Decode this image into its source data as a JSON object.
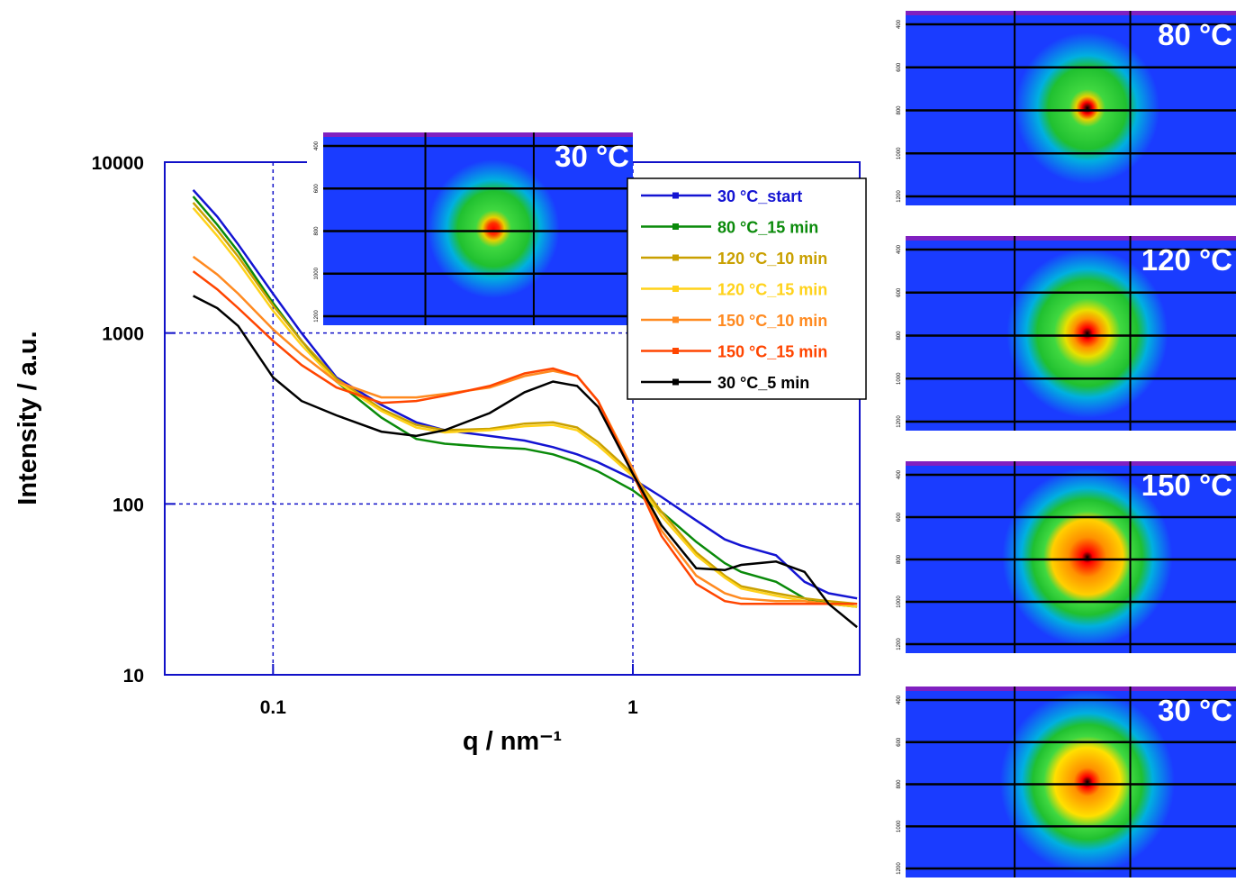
{
  "chart_data": {
    "type": "line",
    "xlabel": "q / nm⁻¹",
    "ylabel": "Intensity / a.u.",
    "xscale": "log",
    "yscale": "log",
    "grid": true,
    "legend": "upper right",
    "xlim": [
      0.05,
      4.27
    ],
    "ylim": [
      10,
      10000
    ],
    "xticks": [
      0.1,
      1
    ],
    "yticks": [
      10,
      100,
      1000,
      10000
    ],
    "x": [
      0.06,
      0.07,
      0.08,
      0.1,
      0.12,
      0.15,
      0.2,
      0.25,
      0.3,
      0.4,
      0.5,
      0.6,
      0.7,
      0.8,
      1.0,
      1.2,
      1.5,
      1.8,
      2.0,
      2.5,
      3.0,
      3.5,
      4.2
    ],
    "series": [
      {
        "name": "30 °C_start",
        "color": "#1414d2",
        "values": [
          6870,
          4800,
          3300,
          1700,
          1000,
          550,
          380,
          300,
          270,
          250,
          235,
          215,
          195,
          175,
          140,
          110,
          80,
          62,
          57,
          50,
          35,
          30,
          28
        ]
      },
      {
        "name": "80 °C_15 min",
        "color": "#0a8a0a",
        "values": [
          6300,
          4300,
          3000,
          1500,
          900,
          520,
          320,
          240,
          225,
          215,
          210,
          195,
          175,
          155,
          120,
          90,
          60,
          45,
          40,
          35,
          28,
          26,
          25
        ]
      },
      {
        "name": "120 °C_10 min",
        "color": "#c9a000",
        "values": [
          5800,
          4000,
          2800,
          1450,
          900,
          540,
          360,
          290,
          270,
          275,
          295,
          300,
          280,
          230,
          150,
          90,
          52,
          38,
          33,
          30,
          28,
          27,
          26
        ]
      },
      {
        "name": "120 °C_15 min",
        "color": "#ffd21a",
        "values": [
          5400,
          3700,
          2600,
          1350,
          850,
          520,
          350,
          280,
          262,
          270,
          285,
          290,
          270,
          220,
          145,
          85,
          50,
          37,
          32,
          29,
          27,
          26,
          25
        ]
      },
      {
        "name": "150 °C_10 min",
        "color": "#ff8a20",
        "values": [
          2800,
          2200,
          1700,
          1050,
          750,
          520,
          420,
          420,
          440,
          480,
          560,
          600,
          560,
          400,
          160,
          70,
          38,
          30,
          28,
          27,
          27,
          26,
          26
        ]
      },
      {
        "name": "150 °C_15 min",
        "color": "#ff4500",
        "values": [
          2300,
          1800,
          1400,
          900,
          650,
          480,
          390,
          400,
          430,
          490,
          580,
          620,
          560,
          400,
          150,
          65,
          34,
          27,
          26,
          26,
          26,
          26,
          26
        ]
      },
      {
        "name": "30 °C_5 min",
        "color": "#000000",
        "values": [
          1650,
          1400,
          1100,
          550,
          400,
          330,
          265,
          250,
          270,
          340,
          450,
          520,
          490,
          370,
          150,
          75,
          42,
          41,
          44,
          46,
          40,
          26,
          19
        ]
      }
    ]
  },
  "insets": [
    {
      "label": "30 °C"
    },
    {
      "label": "80 °C"
    },
    {
      "label": "120 °C"
    },
    {
      "label": "150 °C"
    },
    {
      "label": "30 °C"
    }
  ],
  "detector_ticks": [
    "400",
    "600",
    "800",
    "1000",
    "1200"
  ]
}
